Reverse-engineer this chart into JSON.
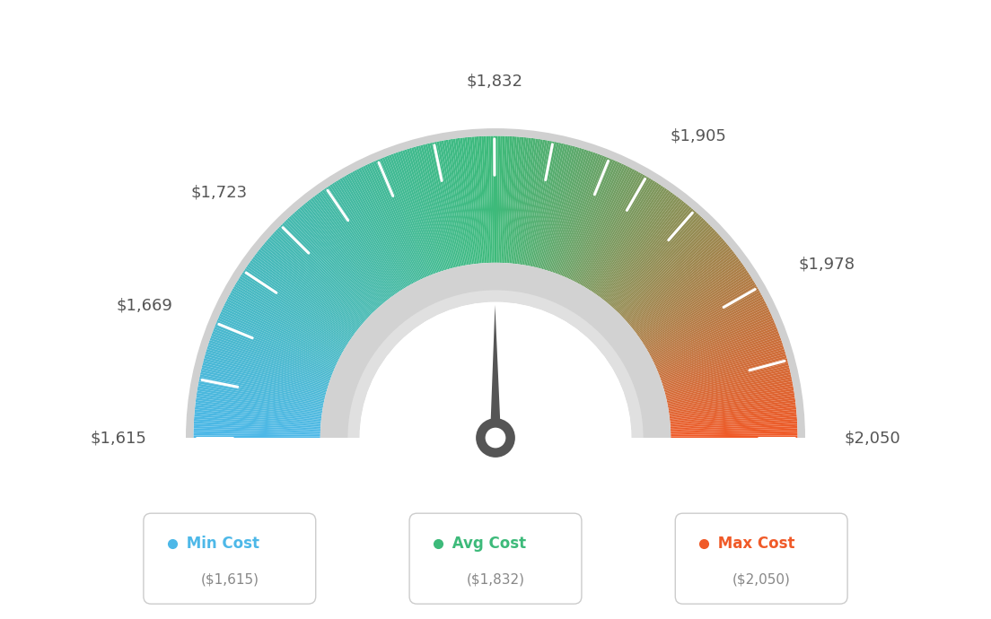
{
  "min_val": 1615,
  "max_val": 2050,
  "avg_val": 1832,
  "labels": [
    "$1,615",
    "$1,669",
    "$1,723",
    "$1,832",
    "$1,905",
    "$1,978",
    "$2,050"
  ],
  "label_values": [
    1615,
    1669,
    1723,
    1832,
    1905,
    1978,
    2050
  ],
  "tick_values": [
    1615,
    1642,
    1669,
    1696,
    1723,
    1750,
    1777,
    1804,
    1832,
    1859,
    1886,
    1905,
    1932,
    1978,
    2014,
    2050
  ],
  "min_label": "Min Cost",
  "avg_label": "Avg Cost",
  "max_label": "Max Cost",
  "min_display": "($1,615)",
  "avg_display": "($1,832)",
  "max_display": "($2,050)",
  "color_min": "#4db8e8",
  "color_avg_green": "#3dba7a",
  "color_max": "#f05a28",
  "needle_color": "#555555",
  "bg_color": "#ffffff",
  "label_color": "#555555",
  "outer_ring_color": "#d0d0d0",
  "inner_ring_color": "#c8c8c8",
  "inner_ring_highlight": "#e8e8e8"
}
